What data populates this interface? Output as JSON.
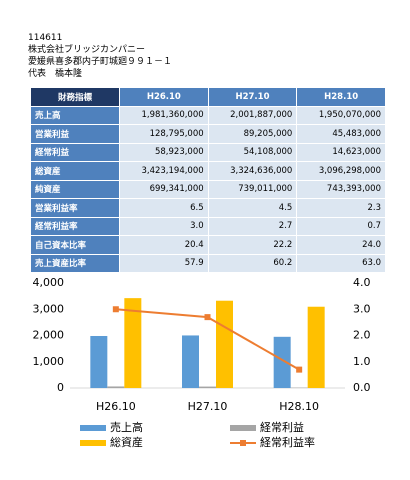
{
  "header": {
    "code": "114611",
    "company": "株式会社ブリッジカンパニー",
    "address": "愛媛県喜多郡内子町城廻９９１－１",
    "representative": "代表　橋本隆"
  },
  "table": {
    "columns": [
      "財務指標",
      "H26.10",
      "H27.10",
      "H28.10"
    ],
    "rows": [
      [
        "売上高",
        "1,981,360,000",
        "2,001,887,000",
        "1,950,070,000"
      ],
      [
        "営業利益",
        "128,795,000",
        "89,205,000",
        "45,483,000"
      ],
      [
        "経常利益",
        "58,923,000",
        "54,108,000",
        "14,623,000"
      ],
      [
        "総資産",
        "3,423,194,000",
        "3,324,636,000",
        "3,096,298,000"
      ],
      [
        "純資産",
        "699,341,000",
        "739,011,000",
        "743,393,000"
      ],
      [
        "営業利益率",
        "6.5",
        "4.5",
        "2.3"
      ],
      [
        "経常利益率",
        "3.0",
        "2.7",
        "0.7"
      ],
      [
        "自己資本比率",
        "20.4",
        "22.2",
        "24.0"
      ],
      [
        "売上資産比率",
        "57.9",
        "60.2",
        "63.0"
      ]
    ]
  },
  "chart_data": {
    "type": "bar",
    "categories": [
      "H26.10",
      "H27.10",
      "H28.10"
    ],
    "series": [
      {
        "name": "売上高",
        "color": "#5b9bd5",
        "values": [
          1981,
          2002,
          1950
        ]
      },
      {
        "name": "経常利益",
        "color": "#a5a5a5",
        "values": [
          59,
          54,
          15
        ]
      },
      {
        "name": "総資産",
        "color": "#ffc000",
        "values": [
          3423,
          3325,
          3096
        ]
      },
      {
        "name": "経常利益率",
        "color": "#ed7d31",
        "values": [
          3.0,
          2.7,
          0.7
        ],
        "axis": "y2",
        "type": "line"
      }
    ],
    "ylim": [
      0,
      4000
    ],
    "yticks": [
      0,
      {
        "value": 1000,
        "label": "1,000"
      },
      {
        "value": 2000,
        "label": "2,000"
      },
      {
        "value": 3000,
        "label": "3,000"
      },
      {
        "value": 4000,
        "label": "4,000"
      }
    ],
    "y2lim": [
      0,
      4
    ],
    "y2ticks": [
      {
        "value": 0,
        "label": "0.0"
      },
      {
        "value": 1,
        "label": "1.0"
      },
      {
        "value": 2,
        "label": "2.0"
      },
      {
        "value": 3,
        "label": "3.0"
      },
      {
        "value": 4,
        "label": "4.0"
      }
    ],
    "grid": false
  }
}
